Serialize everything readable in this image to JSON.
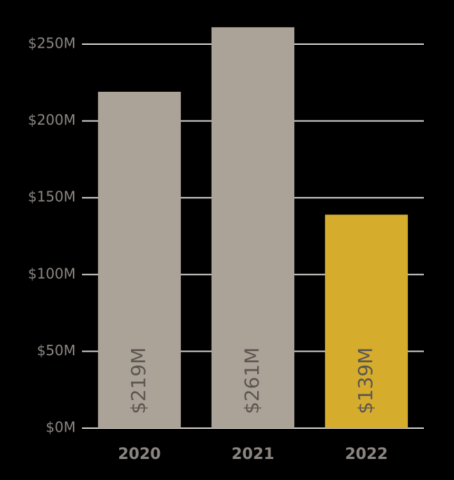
{
  "chart_data": {
    "type": "bar",
    "categories": [
      "2020",
      "2021",
      "2022"
    ],
    "values": [
      219,
      261,
      139
    ],
    "value_labels": [
      "$219M",
      "$261M",
      "$139M"
    ],
    "colors": [
      "#aca398",
      "#aca398",
      "#d6ac2c"
    ],
    "ylim": [
      0,
      250
    ],
    "yticks": [
      {
        "value": 0,
        "label": "$0M"
      },
      {
        "value": 50,
        "label": "$50M"
      },
      {
        "value": 100,
        "label": "$100M"
      },
      {
        "value": 150,
        "label": "$150M"
      },
      {
        "value": 200,
        "label": "$200M"
      },
      {
        "value": 250,
        "label": "$250M"
      }
    ],
    "grid": true
  }
}
